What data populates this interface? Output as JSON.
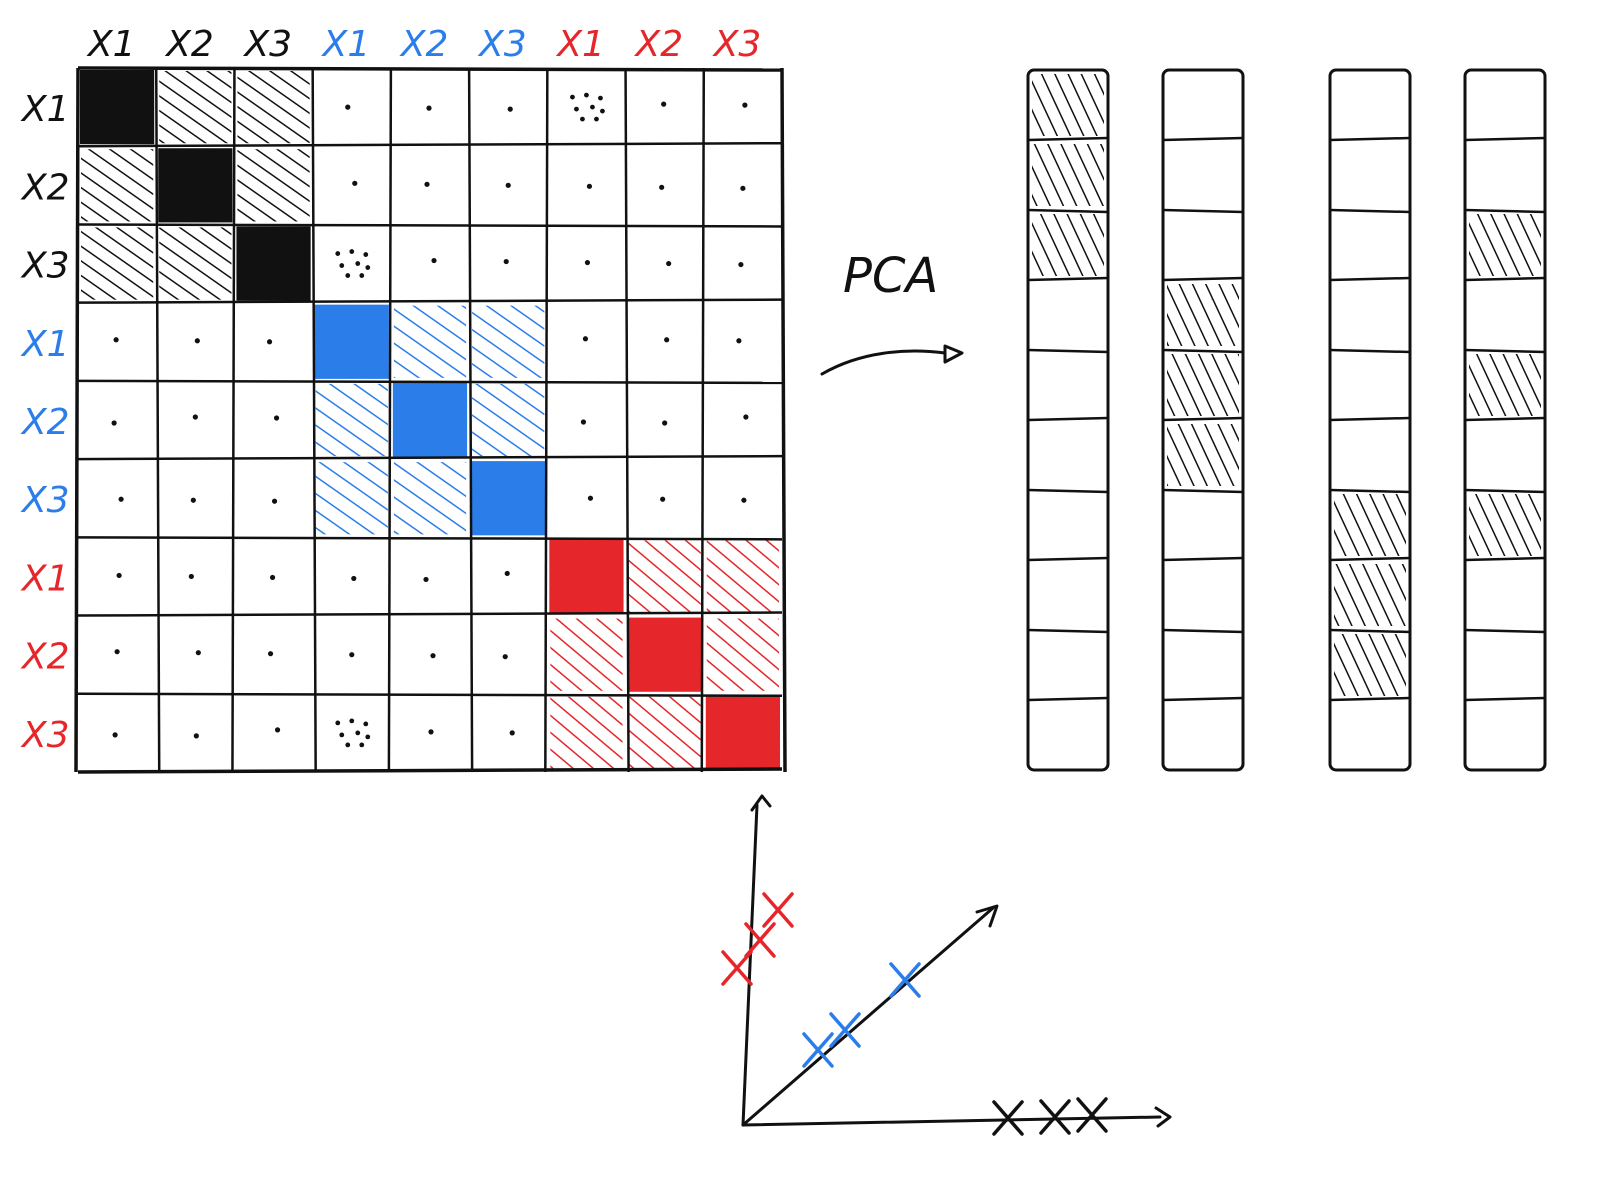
{
  "colors": {
    "ink": "#111111",
    "group_black": "#111111",
    "group_blue": "#2b7de9",
    "group_red": "#e5262a",
    "background": "#ffffff"
  },
  "matrix": {
    "groups": [
      {
        "color": "black",
        "vars": [
          "X1",
          "X2",
          "X3"
        ]
      },
      {
        "color": "blue",
        "vars": [
          "X1",
          "X2",
          "X3"
        ]
      },
      {
        "color": "red",
        "vars": [
          "X1",
          "X2",
          "X3"
        ]
      }
    ],
    "column_labels": [
      {
        "text": "X1",
        "color": "black"
      },
      {
        "text": "X2",
        "color": "black"
      },
      {
        "text": "X3",
        "color": "black"
      },
      {
        "text": "X1",
        "color": "blue"
      },
      {
        "text": "X2",
        "color": "blue"
      },
      {
        "text": "X3",
        "color": "blue"
      },
      {
        "text": "X1",
        "color": "red"
      },
      {
        "text": "X2",
        "color": "red"
      },
      {
        "text": "X3",
        "color": "red"
      }
    ],
    "row_labels": [
      {
        "text": "X1",
        "color": "black"
      },
      {
        "text": "X2",
        "color": "black"
      },
      {
        "text": "X3",
        "color": "black"
      },
      {
        "text": "X1",
        "color": "blue"
      },
      {
        "text": "X2",
        "color": "blue"
      },
      {
        "text": "X3",
        "color": "blue"
      },
      {
        "text": "X1",
        "color": "red"
      },
      {
        "text": "X2",
        "color": "red"
      },
      {
        "text": "X3",
        "color": "red"
      }
    ],
    "cells_legend": "filled = diagonal, hatched = within-group, dot = near zero, dots = small"
  },
  "arrow_label": "PCA",
  "components": [
    {
      "segments": 10,
      "filled": [
        0,
        1,
        2
      ]
    },
    {
      "segments": 10,
      "filled": [
        3,
        4,
        5
      ]
    },
    {
      "segments": 10,
      "filled": [
        6,
        7,
        8
      ]
    },
    {
      "segments": 10,
      "filled": [
        2,
        4,
        6
      ]
    }
  ],
  "scatter": {
    "red_points": 3,
    "blue_points": 3,
    "black_points": 3
  }
}
